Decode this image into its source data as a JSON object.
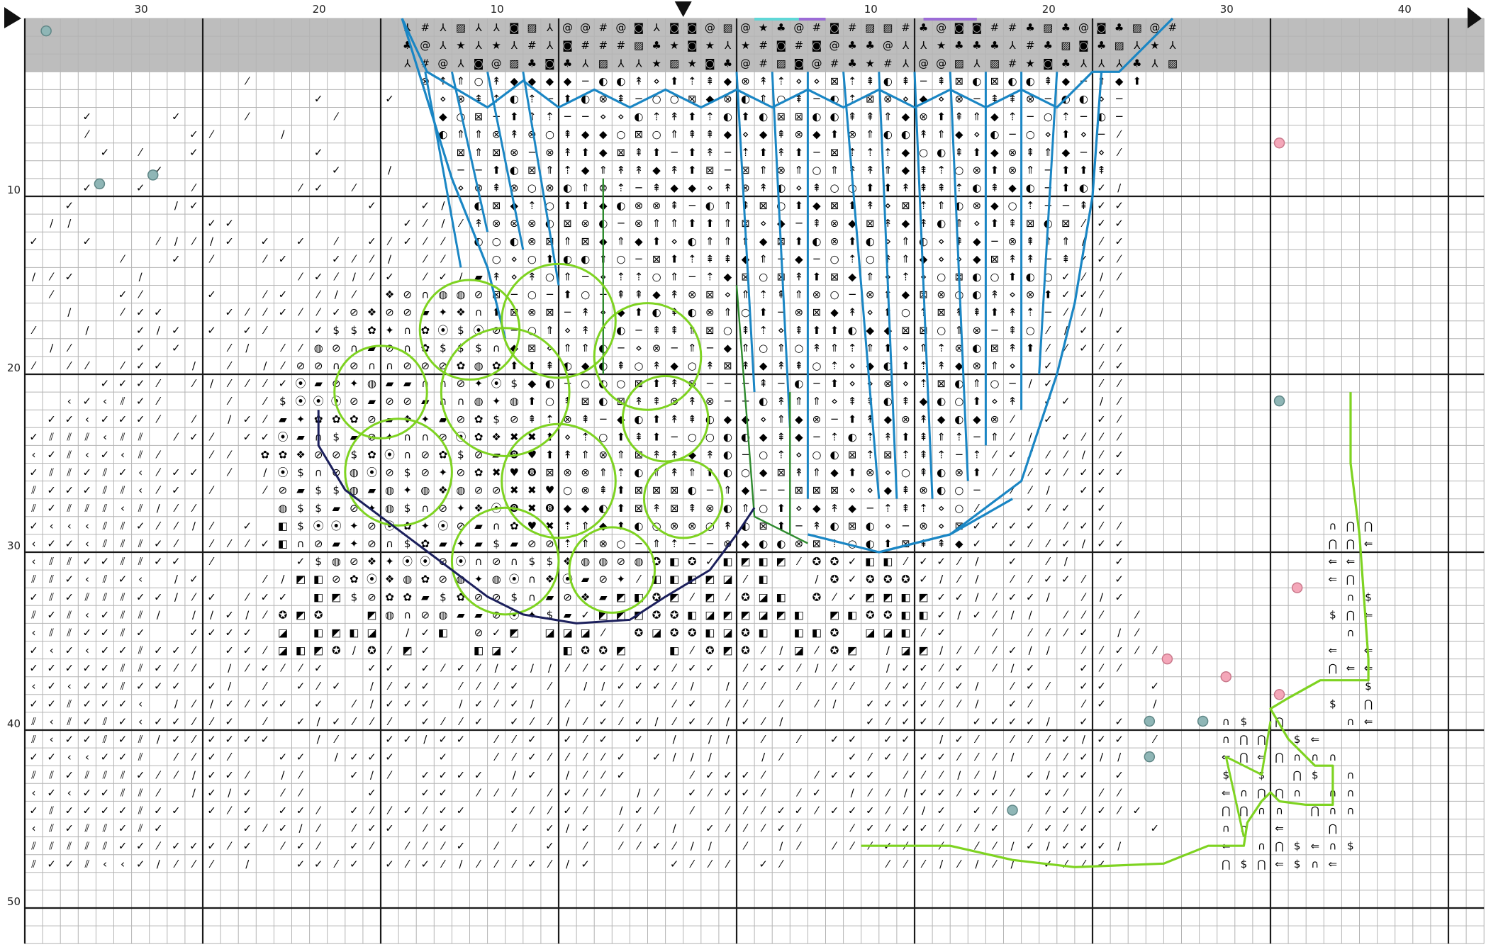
{
  "chart_data": {
    "type": "cross-stitch-pattern",
    "top_ruler_labels": [
      "30",
      "20",
      "10",
      "10",
      "20",
      "30",
      "40"
    ],
    "left_ruler_labels": [
      "10",
      "20",
      "30",
      "40",
      "50"
    ],
    "colors": {
      "grid": "#b4b4b4",
      "grid_major": "#1a1a1a",
      "shaded_band": "#bdbdbd",
      "outline_blue": "#1a86c4",
      "outline_lime": "#7ed321",
      "outline_green": "#2e8b2e",
      "outline_navy": "#1b1f5c",
      "marker_teal": "#8fb6b6",
      "marker_pink": "#f4a7b9",
      "marker_purple": "#9b6bd6",
      "marker_cyan": "#5fd7d7"
    },
    "icons": [
      "center-arrow-icon",
      "corner-arrow-icon"
    ]
  }
}
